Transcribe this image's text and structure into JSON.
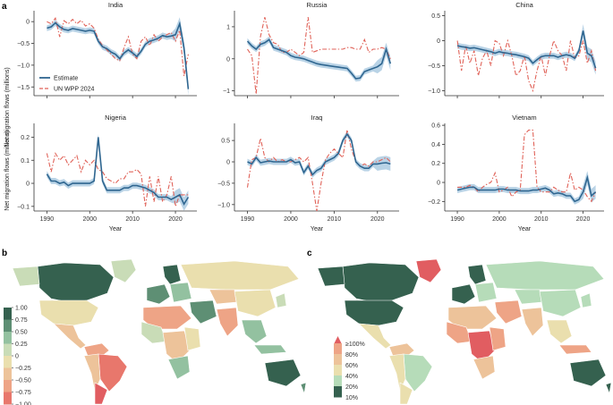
{
  "panel_labels": [
    "a",
    "b",
    "c"
  ],
  "colors": {
    "estimate": "#2f6690",
    "estimate_band": "#b9d3e6",
    "wpp": "#e06258",
    "map_ocean": "#ffffff",
    "map_nodata": "#e8e8e8"
  },
  "chart_data": [
    {
      "type": "line",
      "title": "India",
      "xlabel": "",
      "ylabel": "Net migration flows (millions)",
      "xlim": [
        1987,
        2025
      ],
      "ylim": [
        -1.7,
        0.25
      ],
      "yticks": [
        -1.5,
        -1.0,
        -0.5,
        0
      ],
      "xticks": [],
      "legend": "bottom-left",
      "series": [
        {
          "name": "Estimate",
          "x": [
            1990,
            1991,
            1992,
            1993,
            1994,
            1995,
            1996,
            1997,
            1998,
            1999,
            2000,
            2001,
            2002,
            2003,
            2004,
            2005,
            2006,
            2007,
            2008,
            2009,
            2010,
            2011,
            2012,
            2013,
            2014,
            2015,
            2016,
            2017,
            2018,
            2019,
            2020,
            2021,
            2022,
            2023
          ],
          "values": [
            -0.15,
            -0.12,
            -0.03,
            -0.12,
            -0.18,
            -0.2,
            -0.16,
            -0.18,
            -0.2,
            -0.22,
            -0.2,
            -0.22,
            -0.45,
            -0.58,
            -0.62,
            -0.7,
            -0.75,
            -0.85,
            -0.72,
            -0.65,
            -0.72,
            -0.8,
            -0.68,
            -0.52,
            -0.45,
            -0.42,
            -0.38,
            -0.32,
            -0.35,
            -0.33,
            -0.3,
            -0.05,
            -0.6,
            -1.55
          ]
        },
        {
          "name": "UN WPP 2024",
          "x": [
            1990,
            1991,
            1992,
            1993,
            1994,
            1995,
            1996,
            1997,
            1998,
            1999,
            2000,
            2001,
            2002,
            2003,
            2004,
            2005,
            2006,
            2007,
            2008,
            2009,
            2010,
            2011,
            2012,
            2013,
            2014,
            2015,
            2016,
            2017,
            2018,
            2019,
            2020,
            2021,
            2022,
            2023
          ],
          "values": [
            0.0,
            -0.05,
            0.08,
            -0.35,
            0.02,
            -0.05,
            0.05,
            -0.05,
            0.03,
            -0.1,
            -0.05,
            -0.15,
            -0.4,
            -0.55,
            -0.65,
            -0.75,
            -0.85,
            -0.9,
            -0.6,
            -0.35,
            -0.75,
            -0.85,
            -0.45,
            -0.35,
            -0.55,
            -0.3,
            -0.45,
            -0.35,
            -0.3,
            -0.25,
            -0.45,
            -0.2,
            -1.25,
            -0.75
          ]
        }
      ]
    },
    {
      "type": "line",
      "title": "Russia",
      "xlabel": "",
      "ylabel": "",
      "xlim": [
        1987,
        2025
      ],
      "ylim": [
        -1.15,
        1.5
      ],
      "yticks": [
        -1,
        0,
        1
      ],
      "xticks": [],
      "series": [
        {
          "name": "Estimate",
          "x": [
            1990,
            1991,
            1992,
            1993,
            1994,
            1995,
            1996,
            1997,
            1998,
            1999,
            2000,
            2001,
            2002,
            2003,
            2004,
            2005,
            2006,
            2007,
            2008,
            2009,
            2010,
            2011,
            2012,
            2013,
            2014,
            2015,
            2016,
            2017,
            2018,
            2019,
            2020,
            2021,
            2022,
            2023
          ],
          "values": [
            0.55,
            0.4,
            0.3,
            0.45,
            0.5,
            0.6,
            0.35,
            0.3,
            0.25,
            0.2,
            0.1,
            0.05,
            0.03,
            0.0,
            -0.05,
            -0.1,
            -0.15,
            -0.18,
            -0.2,
            -0.22,
            -0.24,
            -0.26,
            -0.28,
            -0.3,
            -0.45,
            -0.62,
            -0.6,
            -0.4,
            -0.35,
            -0.3,
            -0.25,
            -0.15,
            0.3,
            -0.15
          ]
        },
        {
          "name": "UN WPP 2024",
          "x": [
            1990,
            1991,
            1992,
            1993,
            1994,
            1995,
            1996,
            1997,
            1998,
            1999,
            2000,
            2001,
            2002,
            2003,
            2004,
            2005,
            2006,
            2007,
            2008,
            2009,
            2010,
            2011,
            2012,
            2013,
            2014,
            2015,
            2016,
            2017,
            2018,
            2019,
            2020,
            2021,
            2022,
            2023
          ],
          "values": [
            0.3,
            0.1,
            -1.1,
            0.7,
            1.3,
            0.75,
            0.5,
            0.45,
            0.2,
            0.2,
            0.3,
            0.2,
            0.1,
            0.2,
            1.3,
            0.2,
            0.25,
            0.3,
            0.3,
            0.3,
            0.3,
            0.3,
            0.3,
            0.35,
            0.35,
            0.3,
            0.3,
            0.6,
            0.2,
            0.3,
            0.3,
            0.35,
            0.3,
            0.0
          ]
        }
      ]
    },
    {
      "type": "line",
      "title": "China",
      "xlabel": "",
      "ylabel": "",
      "xlim": [
        1987,
        2025
      ],
      "ylim": [
        -1.1,
        0.6
      ],
      "yticks": [
        -1.0,
        -0.5,
        0,
        0.5
      ],
      "xticks": [],
      "series": [
        {
          "name": "Estimate",
          "x": [
            1990,
            1991,
            1992,
            1993,
            1994,
            1995,
            1996,
            1997,
            1998,
            1999,
            2000,
            2001,
            2002,
            2003,
            2004,
            2005,
            2006,
            2007,
            2008,
            2009,
            2010,
            2011,
            2012,
            2013,
            2014,
            2015,
            2016,
            2017,
            2018,
            2019,
            2020,
            2021,
            2022,
            2023
          ],
          "values": [
            -0.1,
            -0.12,
            -0.13,
            -0.15,
            -0.14,
            -0.16,
            -0.18,
            -0.2,
            -0.22,
            -0.25,
            -0.22,
            -0.24,
            -0.25,
            -0.27,
            -0.28,
            -0.3,
            -0.32,
            -0.35,
            -0.45,
            -0.38,
            -0.32,
            -0.3,
            -0.3,
            -0.3,
            -0.33,
            -0.3,
            -0.28,
            -0.3,
            -0.35,
            -0.2,
            0.2,
            -0.25,
            -0.3,
            -0.55
          ]
        },
        {
          "name": "UN WPP 2024",
          "x": [
            1990,
            1991,
            1992,
            1993,
            1994,
            1995,
            1996,
            1997,
            1998,
            1999,
            2000,
            2001,
            2002,
            2003,
            2004,
            2005,
            2006,
            2007,
            2008,
            2009,
            2010,
            2011,
            2012,
            2013,
            2014,
            2015,
            2016,
            2017,
            2018,
            2019,
            2020,
            2021,
            2022,
            2023
          ],
          "values": [
            0.0,
            -0.6,
            -0.1,
            -0.45,
            -0.2,
            -0.7,
            -0.35,
            -0.2,
            -0.5,
            0.0,
            -0.05,
            -0.3,
            0.0,
            -0.3,
            -0.7,
            -0.6,
            -0.3,
            -0.8,
            -1.0,
            -0.6,
            -0.3,
            -0.7,
            -0.3,
            0.0,
            -0.2,
            -0.3,
            -0.6,
            0.0,
            -0.35,
            -0.3,
            0.0,
            -0.45,
            -0.2,
            -0.6
          ]
        }
      ]
    },
    {
      "type": "line",
      "title": "Nigeria",
      "xlabel": "Year",
      "ylabel": "Net migration flows (millions)",
      "xlim": [
        1987,
        2025
      ],
      "ylim": [
        -0.12,
        0.26
      ],
      "yticks": [
        -0.1,
        0,
        0.1,
        0.2
      ],
      "xticks": [
        1990,
        2000,
        2010,
        2020
      ],
      "series": [
        {
          "name": "Estimate",
          "x": [
            1990,
            1991,
            1992,
            1993,
            1994,
            1995,
            1996,
            1997,
            1998,
            1999,
            2000,
            2001,
            2002,
            2003,
            2004,
            2005,
            2006,
            2007,
            2008,
            2009,
            2010,
            2011,
            2012,
            2013,
            2014,
            2015,
            2016,
            2017,
            2018,
            2019,
            2020,
            2021,
            2022,
            2023
          ],
          "values": [
            0.04,
            0.01,
            0.01,
            0.0,
            0.005,
            -0.01,
            0.0,
            0.0,
            0.0,
            0.0,
            0.0,
            0.01,
            0.2,
            0.01,
            -0.03,
            -0.03,
            -0.03,
            -0.03,
            -0.02,
            -0.02,
            -0.01,
            -0.01,
            -0.015,
            -0.02,
            -0.03,
            -0.04,
            -0.06,
            -0.06,
            -0.06,
            -0.07,
            -0.06,
            -0.05,
            -0.09,
            -0.06
          ]
        },
        {
          "name": "UN WPP 2024",
          "x": [
            1990,
            1991,
            1992,
            1993,
            1994,
            1995,
            1996,
            1997,
            1998,
            1999,
            2000,
            2001,
            2002,
            2003,
            2004,
            2005,
            2006,
            2007,
            2008,
            2009,
            2010,
            2011,
            2012,
            2013,
            2014,
            2015,
            2016,
            2017,
            2018,
            2019,
            2020,
            2021,
            2022,
            2023
          ],
          "values": [
            0.13,
            0.05,
            0.13,
            0.1,
            0.12,
            0.08,
            0.1,
            0.12,
            0.05,
            0.1,
            0.08,
            0.1,
            0.06,
            0.05,
            0.02,
            0.01,
            0.0,
            0.02,
            0.02,
            0.05,
            0.05,
            0.06,
            0.04,
            -0.1,
            0.03,
            -0.08,
            0.03,
            -0.08,
            -0.05,
            0.03,
            -0.1,
            -0.05,
            -0.05,
            -0.05
          ]
        }
      ]
    },
    {
      "type": "line",
      "title": "Iraq",
      "xlabel": "Year",
      "ylabel": "",
      "xlim": [
        1987,
        2025
      ],
      "ylim": [
        -1.15,
        0.9
      ],
      "yticks": [
        -1.0,
        -0.5,
        0,
        0.5
      ],
      "xticks": [
        1990,
        2000,
        2010,
        2020
      ],
      "series": [
        {
          "name": "Estimate",
          "x": [
            1990,
            1991,
            1992,
            1993,
            1994,
            1995,
            1996,
            1997,
            1998,
            1999,
            2000,
            2001,
            2002,
            2003,
            2004,
            2005,
            2006,
            2007,
            2008,
            2009,
            2010,
            2011,
            2012,
            2013,
            2014,
            2015,
            2016,
            2017,
            2018,
            2019,
            2020,
            2021,
            2022,
            2023
          ],
          "values": [
            0.0,
            -0.05,
            0.1,
            -0.02,
            0.0,
            0.02,
            0.0,
            0.0,
            0.0,
            0.0,
            0.05,
            -0.02,
            0.0,
            -0.25,
            -0.1,
            -0.3,
            -0.2,
            -0.15,
            0.0,
            0.05,
            0.1,
            0.2,
            0.5,
            0.65,
            0.5,
            0.0,
            -0.1,
            -0.15,
            -0.15,
            -0.05,
            -0.05,
            -0.03,
            -0.02,
            -0.05
          ]
        },
        {
          "name": "UN WPP 2024",
          "x": [
            1990,
            1991,
            1992,
            1993,
            1994,
            1995,
            1996,
            1997,
            1998,
            1999,
            2000,
            2001,
            2002,
            2003,
            2004,
            2005,
            2006,
            2007,
            2008,
            2009,
            2010,
            2011,
            2012,
            2013,
            2014,
            2015,
            2016,
            2017,
            2018,
            2019,
            2020,
            2021,
            2022,
            2023
          ],
          "values": [
            -0.6,
            0.05,
            0.1,
            0.55,
            0.1,
            0.0,
            0.1,
            0.0,
            0.05,
            0.0,
            0.0,
            0.05,
            0.1,
            0.0,
            0.1,
            -0.5,
            -1.15,
            -0.5,
            0.05,
            0.2,
            0.3,
            0.2,
            0.1,
            0.75,
            0.3,
            0.0,
            -0.1,
            -0.05,
            -0.1,
            0.0,
            0.0,
            0.05,
            0.1,
            0.0
          ]
        }
      ]
    },
    {
      "type": "line",
      "title": "Vietnam",
      "xlabel": "Year",
      "ylabel": "",
      "xlim": [
        1987,
        2025
      ],
      "ylim": [
        -0.3,
        0.62
      ],
      "yticks": [
        -0.2,
        0,
        0.2,
        0.4,
        0.6
      ],
      "xticks": [
        1990,
        2000,
        2010,
        2020
      ],
      "series": [
        {
          "name": "Estimate",
          "x": [
            1990,
            1991,
            1992,
            1993,
            1994,
            1995,
            1996,
            1997,
            1998,
            1999,
            2000,
            2001,
            2002,
            2003,
            2004,
            2005,
            2006,
            2007,
            2008,
            2009,
            2010,
            2011,
            2012,
            2013,
            2014,
            2015,
            2016,
            2017,
            2018,
            2019,
            2020,
            2021,
            2022,
            2023
          ],
          "values": [
            -0.08,
            -0.07,
            -0.06,
            -0.05,
            -0.05,
            -0.08,
            -0.08,
            -0.08,
            -0.08,
            -0.08,
            -0.07,
            -0.07,
            -0.08,
            -0.08,
            -0.08,
            -0.09,
            -0.09,
            -0.09,
            -0.08,
            -0.08,
            -0.07,
            -0.06,
            -0.08,
            -0.12,
            -0.11,
            -0.12,
            -0.14,
            -0.14,
            -0.2,
            -0.18,
            -0.1,
            0.05,
            -0.14,
            -0.1
          ]
        },
        {
          "name": "UN WPP 2024",
          "x": [
            1990,
            1991,
            1992,
            1993,
            1994,
            1995,
            1996,
            1997,
            1998,
            1999,
            2000,
            2001,
            2002,
            2003,
            2004,
            2005,
            2006,
            2007,
            2008,
            2009,
            2010,
            2011,
            2012,
            2013,
            2014,
            2015,
            2016,
            2017,
            2018,
            2019,
            2020,
            2021,
            2022,
            2023
          ],
          "values": [
            -0.05,
            -0.05,
            -0.05,
            -0.03,
            -0.05,
            -0.1,
            -0.05,
            -0.02,
            0.0,
            0.1,
            -0.1,
            -0.08,
            -0.05,
            -0.15,
            -0.1,
            -0.08,
            0.5,
            0.55,
            0.55,
            -0.05,
            -0.1,
            -0.1,
            -0.1,
            -0.05,
            -0.08,
            -0.1,
            -0.1,
            0.1,
            -0.08,
            -0.05,
            -0.08,
            -0.15,
            -0.2,
            -0.1
          ]
        }
      ]
    }
  ],
  "legend_a": {
    "estimate_label": "Estimate",
    "wpp_label": "UN WPP 2024"
  },
  "map_b": {
    "type": "heatmap",
    "legend_ticks": [
      "1.00",
      "0.75",
      "0.50",
      "0.25",
      "0",
      "−0.25",
      "−0.50",
      "−0.75",
      "−1.00"
    ],
    "scale_colors": [
      "#35614f",
      "#5e8f74",
      "#93c1a0",
      "#c9dcb7",
      "#eadfae",
      "#edc39a",
      "#eea486",
      "#e8776c",
      "#e15d61"
    ]
  },
  "map_c": {
    "type": "heatmap",
    "legend_ticks": [
      "≥100%",
      "80%",
      "60%",
      "40%",
      "20%",
      "10%"
    ],
    "scale_colors": [
      "#e15d61",
      "#eea486",
      "#edc39a",
      "#eadfae",
      "#b6dcb9",
      "#35614f"
    ]
  }
}
